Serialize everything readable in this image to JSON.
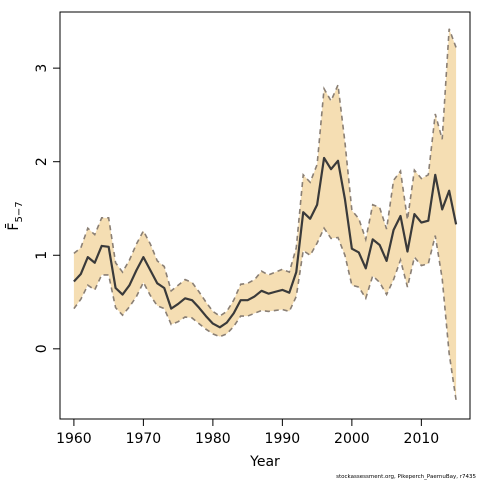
{
  "chart_data": {
    "type": "line",
    "xlabel": "Year",
    "ylabel": "F̄",
    "ylabel_sub": "5−7",
    "xlim": [
      1958,
      2017
    ],
    "ylim": [
      -0.75,
      3.6
    ],
    "xticks": [
      1960,
      1970,
      1980,
      1990,
      2000,
      2010
    ],
    "yticks": [
      0,
      1,
      2,
      3
    ],
    "grid": false,
    "credit": "stockassessment.org, Pikeperch_PaernuBay, r7435",
    "colors": {
      "band": "#f5deb3",
      "bound_line": "#8a7f74",
      "estimate_line": "#3a3a3a"
    },
    "x": [
      1960,
      1961,
      1962,
      1963,
      1964,
      1965,
      1966,
      1967,
      1968,
      1969,
      1970,
      1971,
      1972,
      1973,
      1974,
      1975,
      1976,
      1977,
      1978,
      1979,
      1980,
      1981,
      1982,
      1983,
      1984,
      1985,
      1986,
      1987,
      1988,
      1989,
      1990,
      1991,
      1992,
      1993,
      1994,
      1995,
      1996,
      1997,
      1998,
      1999,
      2000,
      2001,
      2002,
      2003,
      2004,
      2005,
      2006,
      2007,
      2008,
      2009,
      2010,
      2011,
      2012,
      2013,
      2014,
      2015
    ],
    "series": [
      {
        "role": "estimate",
        "values": [
          0.72,
          0.8,
          0.98,
          0.92,
          1.1,
          1.09,
          0.65,
          0.58,
          0.68,
          0.84,
          0.98,
          0.84,
          0.7,
          0.65,
          0.43,
          0.48,
          0.54,
          0.52,
          0.44,
          0.35,
          0.27,
          0.23,
          0.28,
          0.38,
          0.52,
          0.52,
          0.56,
          0.62,
          0.59,
          0.61,
          0.63,
          0.6,
          0.82,
          1.46,
          1.39,
          1.54,
          2.04,
          1.92,
          2.01,
          1.6,
          1.07,
          1.03,
          0.86,
          1.17,
          1.11,
          0.94,
          1.27,
          1.42,
          1.04,
          1.44,
          1.35,
          1.37,
          1.86,
          1.49,
          1.69,
          1.33
        ]
      },
      {
        "role": "upper",
        "values": [
          1.02,
          1.08,
          1.29,
          1.22,
          1.4,
          1.4,
          0.92,
          0.82,
          0.95,
          1.12,
          1.26,
          1.12,
          0.94,
          0.88,
          0.62,
          0.68,
          0.74,
          0.71,
          0.61,
          0.5,
          0.4,
          0.35,
          0.4,
          0.52,
          0.69,
          0.7,
          0.74,
          0.83,
          0.79,
          0.82,
          0.85,
          0.82,
          1.08,
          1.86,
          1.78,
          1.97,
          2.78,
          2.65,
          2.82,
          2.21,
          1.48,
          1.39,
          1.17,
          1.54,
          1.51,
          1.28,
          1.8,
          1.9,
          1.38,
          1.91,
          1.82,
          1.86,
          2.51,
          2.24,
          3.42,
          3.22
        ]
      },
      {
        "role": "lower",
        "values": [
          0.43,
          0.53,
          0.68,
          0.63,
          0.79,
          0.79,
          0.44,
          0.36,
          0.45,
          0.56,
          0.71,
          0.57,
          0.46,
          0.43,
          0.26,
          0.29,
          0.34,
          0.33,
          0.27,
          0.21,
          0.16,
          0.13,
          0.16,
          0.24,
          0.35,
          0.35,
          0.38,
          0.41,
          0.4,
          0.41,
          0.42,
          0.4,
          0.56,
          1.05,
          1.0,
          1.13,
          1.29,
          1.18,
          1.19,
          1.0,
          0.68,
          0.66,
          0.54,
          0.78,
          0.71,
          0.58,
          0.74,
          0.95,
          0.66,
          0.98,
          0.89,
          0.91,
          1.21,
          0.75,
          -0.05,
          -0.55
        ]
      }
    ]
  }
}
